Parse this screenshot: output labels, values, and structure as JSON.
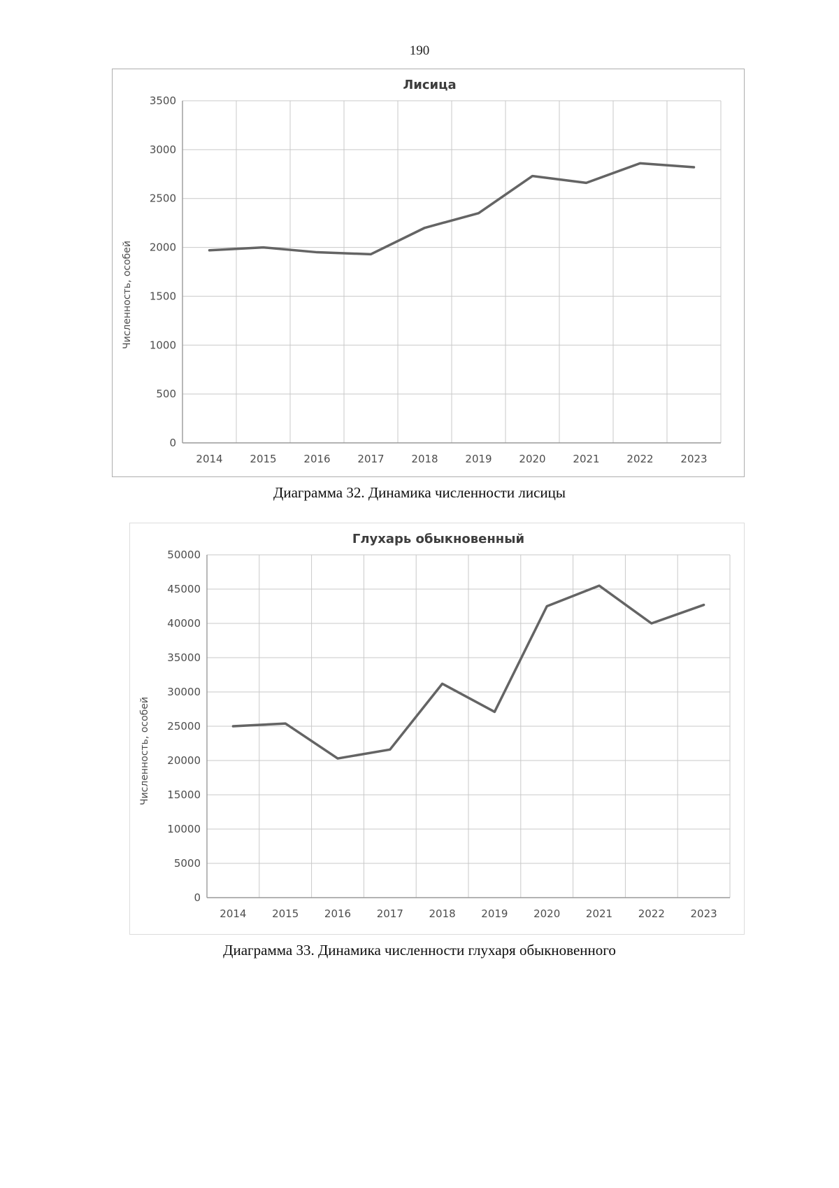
{
  "page": {
    "number": "190"
  },
  "chart_data": [
    {
      "type": "line",
      "title": "Лисица",
      "ylabel": "Численность, особей",
      "xlabel": "",
      "categories": [
        "2014",
        "2015",
        "2016",
        "2017",
        "2018",
        "2019",
        "2020",
        "2021",
        "2022",
        "2023"
      ],
      "values": [
        1970,
        2000,
        1950,
        1930,
        2200,
        2350,
        2730,
        2660,
        2860,
        2820
      ],
      "ylim": [
        0,
        3500
      ],
      "ytick_step": 500,
      "grid": true,
      "legend": "none",
      "line_color": "#646464",
      "caption": "Диаграмма 32. Динамика численности лисицы"
    },
    {
      "type": "line",
      "title": "Глухарь обыкновенный",
      "ylabel": "Численность, особей",
      "xlabel": "",
      "categories": [
        "2014",
        "2015",
        "2016",
        "2017",
        "2018",
        "2019",
        "2020",
        "2021",
        "2022",
        "2023"
      ],
      "values": [
        25000,
        25400,
        20300,
        21600,
        31200,
        27100,
        42500,
        45500,
        40000,
        42700
      ],
      "ylim": [
        0,
        50000
      ],
      "ytick_step": 5000,
      "grid": true,
      "legend": "none",
      "line_color": "#646464",
      "caption": "Диаграмма 33. Динамика численности глухаря обыкновенного"
    }
  ]
}
